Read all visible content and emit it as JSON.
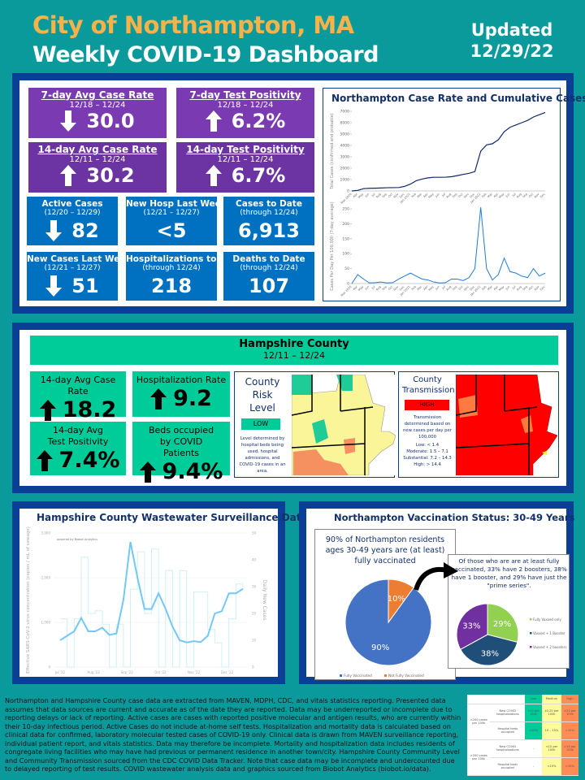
{
  "header": {
    "title": "City of Northampton, MA",
    "subtitle": "Weekly COVID-19 Dashboard",
    "updated_label": "Updated",
    "updated_date": "12/29/22"
  },
  "northampton": {
    "tiles": [
      {
        "title": "7-day Avg Case Rate",
        "dates": "12/18 – 12/24",
        "value": "30.0",
        "trend": "down"
      },
      {
        "title": "7-day Test Positivity",
        "dates": "12/18 – 12/24",
        "value": "6.2%",
        "trend": "up"
      },
      {
        "title": "14-day Avg Case Rate",
        "dates": "12/11 – 12/24",
        "value": "30.2",
        "trend": "up"
      },
      {
        "title": "14-day Test Positivity",
        "dates": "12/11 – 12/24",
        "value": "6.7%",
        "trend": "up"
      }
    ],
    "stats": [
      {
        "title": "Active Cases",
        "dates": "(12/20 – 12/29)",
        "value": "82",
        "trend": "down"
      },
      {
        "title": "New Hosp Last Week",
        "dates": "(12/21 – 12/27)",
        "value": "<5",
        "trend": "none"
      },
      {
        "title": "Cases to Date",
        "dates": "(through 12/24)",
        "value": "6,913",
        "trend": "none"
      },
      {
        "title": "New Cases Last Week",
        "dates": "(12/21 – 12/27)",
        "value": "51",
        "trend": "down"
      },
      {
        "title": "Hospitalizations to Date",
        "dates": "(through 12/24)",
        "value": "218",
        "trend": "none"
      },
      {
        "title": "Deaths to Date",
        "dates": "(through 12/24)",
        "value": "107",
        "trend": "none"
      }
    ]
  },
  "hampshire": {
    "title": "Hampshire County",
    "dates": "12/11 – 12/24",
    "tiles": [
      {
        "title": "14-day Avg Case Rate",
        "value": "18.2",
        "trend": "up"
      },
      {
        "title": "Hospitalization Rate",
        "value": "9.2",
        "trend": "up"
      },
      {
        "title": "14-day Avg Test Positivity",
        "value": "7.4%",
        "trend": "up"
      },
      {
        "title": "Beds occupied by COVID Patients",
        "value": "9.4%",
        "trend": "up"
      }
    ],
    "risk": {
      "title": "County Risk Level",
      "level": "LOW",
      "level_color": "#00cc99",
      "note": "Level determined by hospital beds being used, hospital admissions, and COVID-19 cases in an area."
    },
    "transmission": {
      "title": "County Transmission",
      "level": "HIGH",
      "level_color": "#ff0000",
      "note": "Transmission determined based on new cases per day per 100,000",
      "scale": [
        "Low: < 1.4",
        "Moderate: 1.5 – 7.1",
        "Substantial: 7.2 – 14.3",
        "High: > 14.4"
      ]
    }
  },
  "vaccination": {
    "title": "Northampton Vaccination Status: 30-49 Years",
    "main_text": "90% of Northampton residents ages 30-49 years are (at least) fully vaccinated",
    "sub_text": "Of those who are are at least fully vaccinated, 33% have 2 boosters, 38% have 1 booster, and 29% have just the \"prime series\".",
    "pie1": [
      {
        "label": "Fully Vaccinated",
        "value": 90,
        "text": "90%",
        "color": "#4472c4"
      },
      {
        "label": "Not Fully Vaccinated",
        "value": 10,
        "text": "10%",
        "color": "#ed7d31"
      }
    ],
    "pie2": [
      {
        "label": "Fully Vaxxed only",
        "value": 29,
        "text": "29%",
        "color": "#92d050"
      },
      {
        "label": "Vaxxed + 1 Booster",
        "value": 38,
        "text": "38%",
        "color": "#1f4e79"
      },
      {
        "label": "Vaxxed + 2 boosters",
        "value": 33,
        "text": "33%",
        "color": "#7030a0"
      }
    ]
  },
  "chart_data": [
    {
      "type": "line",
      "title": "Northampton Case Rate and Cumulative Cases",
      "ylabel": "Total Cases (confirmed and probable)",
      "ylim": [
        0,
        7000
      ],
      "yticks": [
        "0",
        "1000",
        "2000",
        "3000",
        "4000",
        "5000",
        "6000",
        "7000"
      ],
      "x": [
        "Mar 2020",
        "Apr",
        "May",
        "Jun",
        "Jul",
        "Aug",
        "Sep",
        "Oct",
        "Nov",
        "Dec",
        "Jan 2021",
        "Feb",
        "Mar",
        "Apr",
        "May",
        "Jun",
        "Jul",
        "Aug",
        "Sep",
        "Oct",
        "Nov",
        "Dec",
        "Jan 2022",
        "Feb",
        "Mar",
        "Apr",
        "May",
        "Jun",
        "Jul",
        "Aug",
        "Sep",
        "Oct",
        "Nov",
        "Dec"
      ],
      "values": [
        0,
        50,
        200,
        230,
        240,
        260,
        280,
        290,
        300,
        400,
        600,
        900,
        1050,
        1150,
        1200,
        1200,
        1210,
        1250,
        1350,
        1450,
        1550,
        1700,
        3500,
        4050,
        4150,
        4500,
        5200,
        5600,
        5800,
        6000,
        6200,
        6500,
        6700,
        6900
      ],
      "color": "#0d2a6b"
    },
    {
      "type": "line",
      "ylabel": "Cases Per Day Per 100,000 (7-day average)",
      "ylim": [
        0,
        250
      ],
      "yticks": [
        "0",
        "50",
        "100",
        "150",
        "200",
        "250"
      ],
      "values": [
        0,
        30,
        15,
        2,
        3,
        5,
        2,
        3,
        15,
        25,
        35,
        25,
        15,
        12,
        5,
        2,
        3,
        15,
        15,
        10,
        20,
        50,
        255,
        50,
        12,
        30,
        85,
        40,
        35,
        25,
        20,
        50,
        25,
        35
      ],
      "color": "#1f7bd6"
    },
    {
      "type": "line",
      "title": "Hampshire County Wastewater Surveillance Data",
      "note": "powered by Biobot Analytics",
      "ylabel": "Effective SARS-CoV-2 virus concentration (copies / mL of sewage)",
      "y2label": "Daily New Cases",
      "xticks": [
        "Jul '22",
        "Aug '22",
        "Sep '22",
        "Oct '22",
        "Nov '22",
        "Dec '22"
      ],
      "ylim": [
        0,
        3000
      ],
      "yticks": [
        "0",
        "1,000",
        "2,000",
        "3,000"
      ],
      "y2lim": [
        0,
        50
      ],
      "y2ticks": [
        "0",
        "10",
        "20",
        "30",
        "40",
        "50"
      ],
      "series": [
        {
          "name": "Virus concentration",
          "color": "#74c8f5",
          "values": [
            600,
            700,
            800,
            1100,
            800,
            800,
            880,
            720,
            750,
            1500,
            2800,
            2000,
            1300,
            1300,
            1650,
            1300,
            900,
            600,
            550,
            580,
            560,
            700,
            1200,
            1250,
            1650,
            1650,
            1750
          ]
        },
        {
          "name": "Daily New Cases",
          "color": "#cdf1f4",
          "values": [
            18,
            0,
            18,
            41,
            20,
            21,
            16,
            0,
            16,
            0,
            29,
            43,
            20,
            44,
            0,
            36,
            0,
            36,
            0,
            28,
            28,
            14,
            9,
            0,
            18,
            31,
            29
          ]
        }
      ]
    }
  ],
  "footer": {
    "text": "Northampton and Hampshire County case data are extracted from MAVEN, MDPH, CDC, and vitals statistics reporting. Presented data assumes that data sources are current and accurate as of the date they are reported. Data may be underreported or incomplete due to reporting delays or lack of reporting. Active cases are cases with reported positive molecular and antigen results, who are currently within their 10-day infectious period. Active Cases do not include at-home self tests. Hospitalization and mortality data is calculated based on clinical data for confirmed, laboratory molecular tested cases of COVID-19 only. Clinical data is drawn from MAVEN surveillance reporting, individual patient report, and vitals statistics. Data may therefore be incomplete. Mortality and hospitalization data includes residents of congregate living facilities who may have had previous or permanent residence in another town/city. Hampshire County Community Level and Community Transmission sourced from the CDC COVID Data Tracker. Note that case data may be incomplete and undercounted due to delayed reporting of test results. COVID wastewater analysis data and graphics sourced from Biobot Analytics (biobot.io/data).",
    "table": {
      "headers": [
        "Low",
        "Medium",
        "High"
      ],
      "groups": [
        {
          "label": "<200 cases per 100k",
          "rows": [
            {
              "metric": "New COVID hospitalizations",
              "low": "<10 per 100k",
              "medium": "10-20 per 100k",
              "high": ">20 per 100k"
            },
            {
              "metric": "Hospital beds occupied",
              "low": "<10%",
              "medium": "10 – 15%",
              "high": ">15%"
            }
          ]
        },
        {
          "label": ">200 cases per 100k",
          "rows": [
            {
              "metric": "New COVID hospitalizations",
              "low": "-",
              "medium": "<10 per 100k",
              "high": ">10 per 100k"
            },
            {
              "metric": "Hospital beds occupied",
              "low": "-",
              "medium": "<10%",
              "high": ">10%"
            }
          ]
        }
      ]
    }
  }
}
